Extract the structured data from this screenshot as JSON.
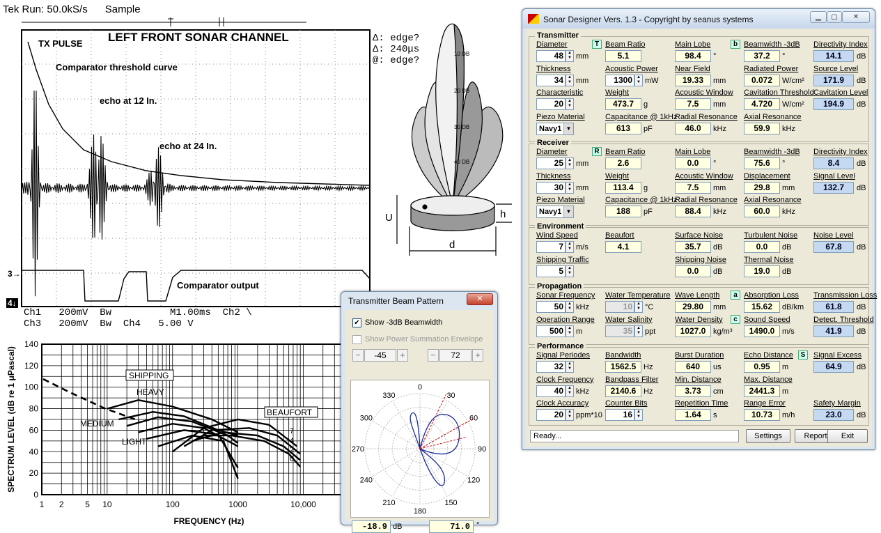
{
  "scope": {
    "header": "Tek Run: 50.0kS/s      Sample",
    "title": "LEFT FRONT SONAR CHANNEL",
    "tx_pulse": "TX PULSE",
    "comparator_curve": "Comparator threshold curve",
    "echo12": "echo at 12 In.",
    "echo24": "echo at 24 In.",
    "delta_edge": "Δ: edge?",
    "delta_time": "Δ: 240μs",
    "at_edge": "@: edge?",
    "comparator_output": "Comparator output",
    "marker3": "3→",
    "marker4": "4↓",
    "footer1": "Ch1   200mV  Bw          M1.00ms  Ch2 \\",
    "footer2": "Ch3   200mV  Bw  Ch4   5.00 V",
    "ch4": "Ch4"
  },
  "noise_chart": {
    "ylabel": "SPECTRUM LEVEL (dB re 1 μPascal)",
    "xlabel": "FREQUENCY (Hz)",
    "yticks": [
      "0",
      "20",
      "40",
      "60",
      "80",
      "100",
      "120",
      "140"
    ],
    "xticks": [
      "1",
      "2",
      "5",
      "10",
      "100",
      "1000",
      "10,000"
    ],
    "shipping": "SHIPPING",
    "heavy": "HEAVY",
    "medium": "MEDIUM",
    "light": "LIGHT",
    "beaufort": "BEAUFORT",
    "beaufort_levels": [
      "7",
      "4",
      "2",
      "0"
    ]
  },
  "diagram": {
    "u": "U",
    "h": "h",
    "d": "d",
    "db_labels": [
      "10 DB",
      "20 DB",
      "30 DB",
      "40 DB"
    ]
  },
  "app": {
    "title": "Sonar Designer Vers. 1.3 - Copyright by seanus systems",
    "status": "Ready...",
    "buttons": {
      "settings": "Settings",
      "report": "Report",
      "exit": "Exit"
    },
    "transmitter": {
      "title": "Transmitter",
      "badges": {
        "t": "T",
        "b": "b"
      },
      "diameter": {
        "label": "Diameter",
        "value": "48",
        "unit": "mm"
      },
      "beam_ratio": {
        "label": "Beam Ratio",
        "value": "5.1"
      },
      "main_lobe": {
        "label": "Main Lobe",
        "value": "98.4",
        "unit": "°"
      },
      "beamwidth": {
        "label": "Beamwidth -3dB",
        "value": "37.2",
        "unit": "°"
      },
      "directivity": {
        "label": "Directivity Index",
        "value": "14.1",
        "unit": "dB"
      },
      "thickness": {
        "label": "Thickness",
        "value": "34",
        "unit": "mm"
      },
      "acoustic_power": {
        "label": "Acoustic Power",
        "value": "1300",
        "unit": "mW"
      },
      "near_field": {
        "label": "Near Field",
        "value": "19.33",
        "unit": "mm"
      },
      "radiated_power": {
        "label": "Radiated Power",
        "value": "0.072",
        "unit": "W/cm²"
      },
      "source_level": {
        "label": "Source Level",
        "value": "171.9",
        "unit": "dB"
      },
      "characteristic": {
        "label": "Characteristic",
        "value": "20"
      },
      "weight": {
        "label": "Weight",
        "value": "473.7",
        "unit": "g"
      },
      "acoustic_window": {
        "label": "Acoustic Window",
        "value": "7.5",
        "unit": "mm"
      },
      "cavitation_threshold": {
        "label": "Cavitation Threshold",
        "value": "4.720",
        "unit": "W/cm²"
      },
      "cavitation_level": {
        "label": "Cavitation Level",
        "value": "194.9",
        "unit": "dB"
      },
      "piezo": {
        "label": "Piezo Material",
        "value": "Navy1"
      },
      "capacitance": {
        "label": "Capacitance @ 1kHz",
        "value": "613",
        "unit": "pF"
      },
      "radial_res": {
        "label": "Radial Resonance",
        "value": "46.0",
        "unit": "kHz"
      },
      "axial_res": {
        "label": "Axial Resonance",
        "value": "59.9",
        "unit": "kHz"
      }
    },
    "receiver": {
      "title": "Receiver",
      "badge": "R",
      "diameter": {
        "label": "Diameter",
        "value": "25",
        "unit": "mm"
      },
      "beam_ratio": {
        "label": "Beam Ratio",
        "value": "2.6"
      },
      "main_lobe": {
        "label": "Main Lobe",
        "value": "0.0",
        "unit": "°"
      },
      "beamwidth": {
        "label": "Beamwidth -3dB",
        "value": "75.6",
        "unit": "°"
      },
      "directivity": {
        "label": "Directivity Index",
        "value": "8.4",
        "unit": "dB"
      },
      "thickness": {
        "label": "Thickness",
        "value": "30",
        "unit": "mm"
      },
      "weight": {
        "label": "Weight",
        "value": "113.4",
        "unit": "g"
      },
      "acoustic_window": {
        "label": "Acoustic Window",
        "value": "7.5",
        "unit": "mm"
      },
      "displacement": {
        "label": "Displacement",
        "value": "29.8",
        "unit": "mm"
      },
      "signal_level": {
        "label": "Signal Level",
        "value": "132.7",
        "unit": "dB"
      },
      "piezo": {
        "label": "Piezo Material",
        "value": "Navy1"
      },
      "capacitance": {
        "label": "Capacitance @ 1kHz",
        "value": "188",
        "unit": "pF"
      },
      "radial_res": {
        "label": "Radial Resonance",
        "value": "88.4",
        "unit": "kHz"
      },
      "axial_res": {
        "label": "Axial Resonance",
        "value": "60.0",
        "unit": "kHz"
      }
    },
    "environment": {
      "title": "Environment",
      "wind_speed": {
        "label": "Wind Speed",
        "value": "7",
        "unit": "m/s"
      },
      "beaufort": {
        "label": "Beaufort",
        "value": "4.1"
      },
      "surface_noise": {
        "label": "Surface Noise",
        "value": "35.7",
        "unit": "dB"
      },
      "turbulent_noise": {
        "label": "Turbulent Noise",
        "value": "0.0",
        "unit": "dB"
      },
      "noise_level": {
        "label": "Noise Level",
        "value": "67.8",
        "unit": "dB"
      },
      "shipping_traffic": {
        "label": "Shipping Traffic",
        "value": "5"
      },
      "shipping_noise": {
        "label": "Shipping Noise",
        "value": "0.0",
        "unit": "dB"
      },
      "thermal_noise": {
        "label": "Thermal Noise",
        "value": "19.0",
        "unit": "dB"
      }
    },
    "propagation": {
      "title": "Propagation",
      "badges": {
        "a": "a",
        "c": "c"
      },
      "sonar_freq": {
        "label": "Sonar Frequency",
        "value": "50",
        "unit": "kHz"
      },
      "water_temp": {
        "label": "Water Temperature",
        "value": "10",
        "unit": "°C"
      },
      "wave_length": {
        "label": "Wave Length",
        "value": "29.80",
        "unit": "mm"
      },
      "absorption": {
        "label": "Absorption Loss",
        "value": "15.62",
        "unit": "dB/km"
      },
      "transmission_loss": {
        "label": "Transmission Loss",
        "value": "61.8",
        "unit": "dB"
      },
      "op_range": {
        "label": "Operation Range",
        "value": "500",
        "unit": "m"
      },
      "salinity": {
        "label": "Water Salinity",
        "value": "35",
        "unit": "ppt"
      },
      "density": {
        "label": "Water Density",
        "value": "1027.0",
        "unit": "kg/m³"
      },
      "sound_speed": {
        "label": "Sound Speed",
        "value": "1490.0",
        "unit": "m/s"
      },
      "detect_threshold": {
        "label": "Detect. Threshold",
        "value": "41.9",
        "unit": "dB"
      }
    },
    "performance": {
      "title": "Performance",
      "badge": "S",
      "signal_periodes": {
        "label": "Signal Periodes",
        "value": "32"
      },
      "bandwidth": {
        "label": "Bandwidth",
        "value": "1562.5",
        "unit": "Hz"
      },
      "burst_duration": {
        "label": "Burst Duration",
        "value": "640",
        "unit": "us"
      },
      "echo_distance": {
        "label": "Echo Distance",
        "value": "0.95",
        "unit": "m"
      },
      "signal_excess": {
        "label": "Signal Excess",
        "value": "64.9",
        "unit": "dB"
      },
      "clock_freq": {
        "label": "Clock Frequency",
        "value": "40",
        "unit": "kHz"
      },
      "bandpass": {
        "label": "Bandpass Filter",
        "value": "2140.6",
        "unit": "Hz"
      },
      "min_distance": {
        "label": "Min. Distance",
        "value": "3.73",
        "unit": "cm"
      },
      "max_distance": {
        "label": "Max. Distance",
        "value": "2441.3",
        "unit": "m"
      },
      "clock_accuracy": {
        "label": "Clock Accuracy",
        "value": "20",
        "unit": "ppm*10"
      },
      "counter_bits": {
        "label": "Counter Bits",
        "value": "16"
      },
      "rep_time": {
        "label": "Repetition Time",
        "value": "1.64",
        "unit": "s"
      },
      "range_error": {
        "label": "Range Error",
        "value": "10.73",
        "unit": "m/h"
      },
      "safety_margin": {
        "label": "Safety Margin",
        "value": "23.0",
        "unit": "dB"
      }
    }
  },
  "beam": {
    "title": "Transmitter Beam Pattern",
    "close": "✕",
    "show_beamwidth": "Show -3dB Beamwidth",
    "show_envelope": "Show Power Summation Envelope",
    "angle1": "-45",
    "angle2": "72",
    "minus": "−",
    "plus": "+",
    "polar_labels": [
      "0",
      "30",
      "60",
      "90",
      "120",
      "150",
      "180",
      "210",
      "240",
      "270",
      "300",
      "330"
    ],
    "readout_db": "-18.9",
    "readout_db_unit": "dB",
    "readout_deg": "71.0",
    "readout_deg_unit": "°"
  }
}
